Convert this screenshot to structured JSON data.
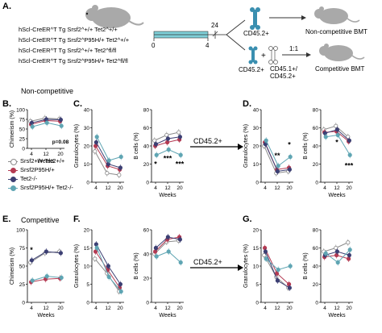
{
  "panel_labels": {
    "A": "A.",
    "B": "B.",
    "C": "C.",
    "D": "D.",
    "E": "E.",
    "F": "F.",
    "G": "G."
  },
  "schematic": {
    "genotypes": [
      "hScl-CreER^T Tg Srsf2^+/+ Tet2^+/+",
      "hScl-CreER^T Tg Srsf2^P95H/+ Tet2^+/+",
      "hScl-CreER^T Tg Srsf2^+/+ Tet2^fl/fl",
      "hScl-CreER^T Tg Srsf2^P95H/+ Tet2^fl/fl"
    ],
    "timeline_ticks": [
      "0",
      "4",
      "24"
    ],
    "cd45_2_label": "CD45.2+",
    "noncomp_label": "Non-competitive BMT",
    "ratio_label": "1:1",
    "cd45_2_b": "CD45.2+",
    "cd45_1_label": "CD45.1+/ CD45.2+",
    "comp_label": "Competitive BMT"
  },
  "section_titles": {
    "noncompetitive": "Non-competitive",
    "competitive": "Competitive"
  },
  "arrow_label_1": "CD45.2+",
  "arrow_label_2": "CD45.2+",
  "legend": {
    "entries": [
      {
        "name": "Srsf2+/+ Tet2+/+",
        "color": "#8c8c8c"
      },
      {
        "name": "Srsf2P95H/+",
        "color": "#b43a52"
      },
      {
        "name": "Tet2-/-",
        "color": "#3c3f73"
      },
      {
        "name": "Srsf2P95H/+ Tet2-/-",
        "color": "#5fa5b3"
      }
    ]
  },
  "colors": {
    "wt": "#8c8c8c",
    "srsf2": "#b43a52",
    "tet2": "#3c3f73",
    "dm": "#5fa5b3",
    "mouse": "#a9a9a9",
    "timeline": "#7fd0d8",
    "bone": "#3a8fb0"
  },
  "chart_data": [
    {
      "id": "B",
      "type": "line",
      "ylabel": "Chimerism (%)",
      "xlabel": "Weeks",
      "categories": [
        "4",
        "12",
        "20"
      ],
      "ylim": [
        0,
        100
      ],
      "yticks": [
        "0",
        "25",
        "50",
        "75",
        "100"
      ],
      "annotation": "p=0.08",
      "series": [
        {
          "values": [
            70,
            78,
            76
          ]
        },
        {
          "values": [
            62,
            72,
            70
          ]
        },
        {
          "values": [
            66,
            75,
            74
          ]
        },
        {
          "values": [
            56,
            66,
            58
          ]
        }
      ]
    },
    {
      "id": "C1",
      "type": "line",
      "ylabel": "Granulocytes (%)",
      "xlabel": "",
      "categories": [
        "4",
        "12",
        "20"
      ],
      "ylim": [
        0,
        40
      ],
      "yticks": [
        "0",
        "10",
        "20",
        "30",
        "40"
      ],
      "series": [
        {
          "values": [
            17,
            5,
            4
          ]
        },
        {
          "values": [
            20,
            9,
            7
          ]
        },
        {
          "values": [
            22,
            10,
            8
          ]
        },
        {
          "values": [
            25,
            12,
            14
          ]
        }
      ]
    },
    {
      "id": "C2",
      "type": "line",
      "ylabel": "B cells (%)",
      "xlabel": "Weeks",
      "categories": [
        "4",
        "12",
        "20"
      ],
      "ylim": [
        0,
        80
      ],
      "yticks": [
        "0",
        "20",
        "40",
        "60",
        "80"
      ],
      "annotations": [
        "*",
        "***",
        "***"
      ],
      "series": [
        {
          "values": [
            46,
            52,
            55
          ]
        },
        {
          "values": [
            40,
            44,
            47
          ]
        },
        {
          "values": [
            42,
            48,
            50
          ]
        },
        {
          "values": [
            30,
            36,
            30
          ]
        }
      ]
    },
    {
      "id": "D1",
      "type": "line",
      "ylabel": "Granulocytes (%)",
      "xlabel": "",
      "categories": [
        "4",
        "12",
        "20"
      ],
      "ylim": [
        0,
        40
      ],
      "yticks": [
        "0",
        "10",
        "20",
        "30",
        "40"
      ],
      "annotations": [
        "**",
        "*"
      ],
      "series": [
        {
          "values": [
            20,
            5,
            6
          ]
        },
        {
          "values": [
            22,
            7,
            8
          ]
        },
        {
          "values": [
            21,
            6,
            7
          ]
        },
        {
          "values": [
            23,
            9,
            14
          ]
        }
      ]
    },
    {
      "id": "D2",
      "type": "line",
      "ylabel": "B cells (%)",
      "xlabel": "Weeks",
      "categories": [
        "4",
        "12",
        "20"
      ],
      "ylim": [
        0,
        80
      ],
      "yticks": [
        "0",
        "20",
        "40",
        "60",
        "80"
      ],
      "annotations": [
        "*",
        "***"
      ],
      "series": [
        {
          "values": [
            58,
            62,
            50
          ]
        },
        {
          "values": [
            55,
            56,
            45
          ]
        },
        {
          "values": [
            54,
            58,
            46
          ]
        },
        {
          "values": [
            50,
            52,
            30
          ]
        }
      ]
    },
    {
      "id": "E",
      "type": "line",
      "ylabel": "Chimerism (%)",
      "xlabel": "Weeks",
      "categories": [
        "4",
        "12",
        "20"
      ],
      "ylim": [
        0,
        100
      ],
      "yticks": [
        "0",
        "25",
        "50",
        "75",
        "100"
      ],
      "annotation": "*",
      "series": [
        {
          "values": [
            55,
            68,
            70
          ]
        },
        {
          "values": [
            28,
            32,
            33
          ]
        },
        {
          "values": [
            58,
            70,
            68
          ]
        },
        {
          "values": [
            30,
            36,
            34
          ]
        }
      ]
    },
    {
      "id": "F1",
      "type": "line",
      "ylabel": "Granulocytes (%)",
      "xlabel": "",
      "categories": [
        "4",
        "12",
        "20"
      ],
      "ylim": [
        0,
        20
      ],
      "yticks": [
        "0",
        "5",
        "10",
        "15",
        "20"
      ],
      "series": [
        {
          "values": [
            12,
            8,
            3
          ]
        },
        {
          "values": [
            14,
            9,
            4
          ]
        },
        {
          "values": [
            16,
            10,
            5
          ]
        },
        {
          "values": [
            15,
            7,
            3
          ]
        }
      ]
    },
    {
      "id": "F2",
      "type": "line",
      "ylabel": "B cells (%)",
      "xlabel": "Weeks",
      "categories": [
        "4",
        "12",
        "20"
      ],
      "ylim": [
        0,
        60
      ],
      "yticks": [
        "0",
        "20",
        "40",
        "60"
      ],
      "series": [
        {
          "values": [
            40,
            50,
            51
          ]
        },
        {
          "values": [
            42,
            52,
            54
          ]
        },
        {
          "values": [
            45,
            54,
            52
          ]
        },
        {
          "values": [
            38,
            42,
            33
          ]
        }
      ]
    },
    {
      "id": "G1",
      "type": "line",
      "ylabel": "Granulocytes (%)",
      "xlabel": "",
      "categories": [
        "4",
        "12",
        "20"
      ],
      "ylim": [
        0,
        20
      ],
      "yticks": [
        "0",
        "5",
        "10",
        "15",
        "20"
      ],
      "series": [
        {
          "values": [
            13,
            7,
            4
          ]
        },
        {
          "values": [
            15,
            8,
            5
          ]
        },
        {
          "values": [
            14,
            6,
            4
          ]
        },
        {
          "values": [
            12,
            9,
            10
          ]
        }
      ]
    },
    {
      "id": "G2",
      "type": "line",
      "ylabel": "B cells (%)",
      "xlabel": "Weeks",
      "categories": [
        "4",
        "12",
        "20"
      ],
      "ylim": [
        0,
        80
      ],
      "yticks": [
        "0",
        "20",
        "40",
        "60",
        "80"
      ],
      "series": [
        {
          "values": [
            56,
            60,
            66
          ]
        },
        {
          "values": [
            50,
            52,
            48
          ]
        },
        {
          "values": [
            52,
            56,
            52
          ]
        },
        {
          "values": [
            54,
            44,
            58
          ]
        }
      ]
    }
  ]
}
